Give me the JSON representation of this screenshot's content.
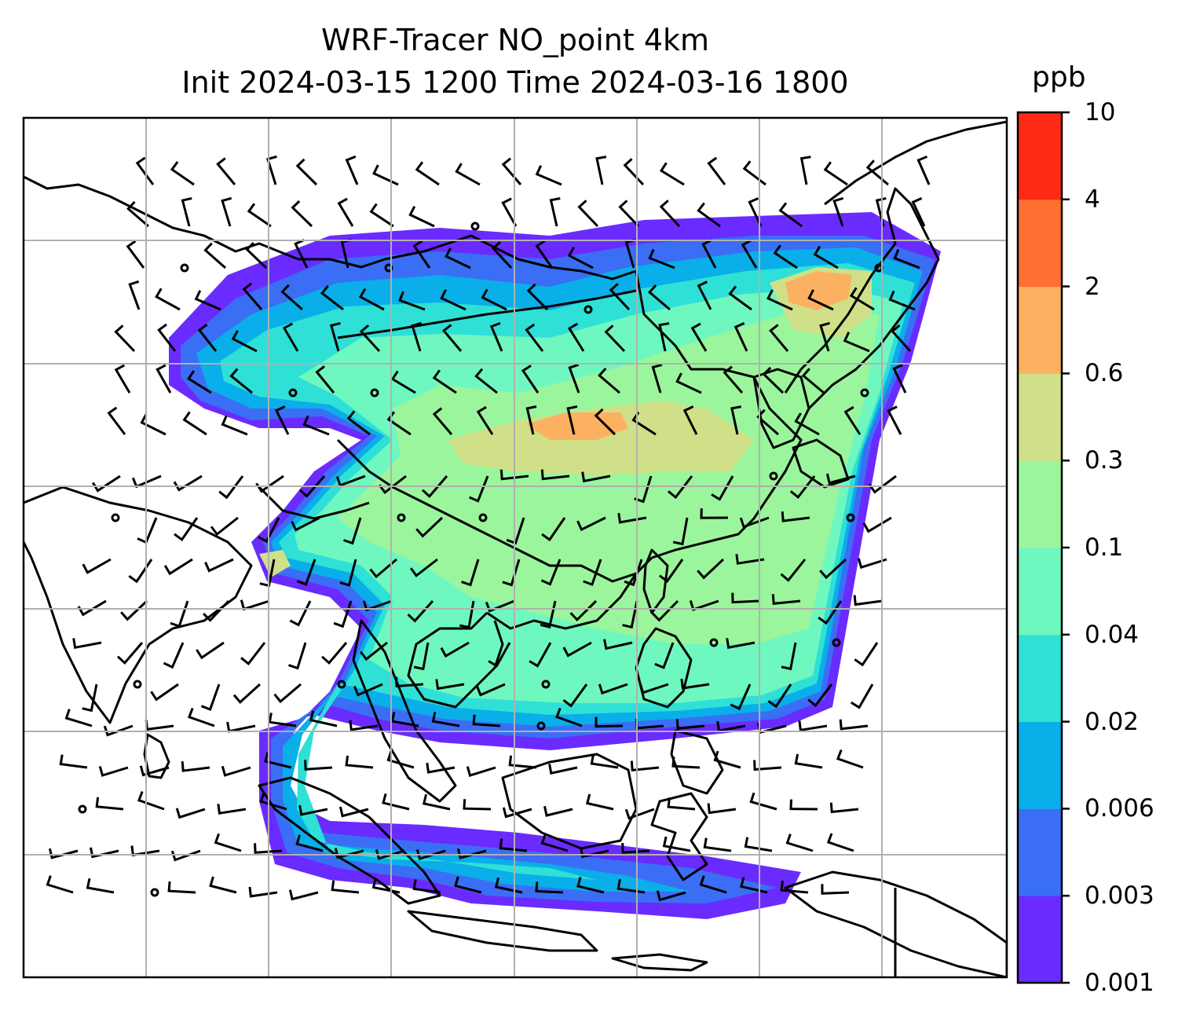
{
  "title": {
    "line1": "WRF-Tracer NO_point 4km",
    "line2": "Init 2024-03-15 1200 Time 2024-03-16 1800"
  },
  "colorbar": {
    "unit": "ppb",
    "levels": [
      "0.001",
      "0.003",
      "0.006",
      "0.02",
      "0.04",
      "0.1",
      "0.3",
      "0.6",
      "2",
      "4",
      "10"
    ],
    "colors": [
      "#6a2bff",
      "#3a6ef5",
      "#0aaee8",
      "#2fe0d6",
      "#6ff7c0",
      "#9bf59c",
      "#cfe088",
      "#fcb062",
      "#ff7033",
      "#ff2a14"
    ]
  },
  "map": {
    "gridlines": true,
    "coastline_color": "#000000",
    "grid_color": "#b0b0b0"
  }
}
